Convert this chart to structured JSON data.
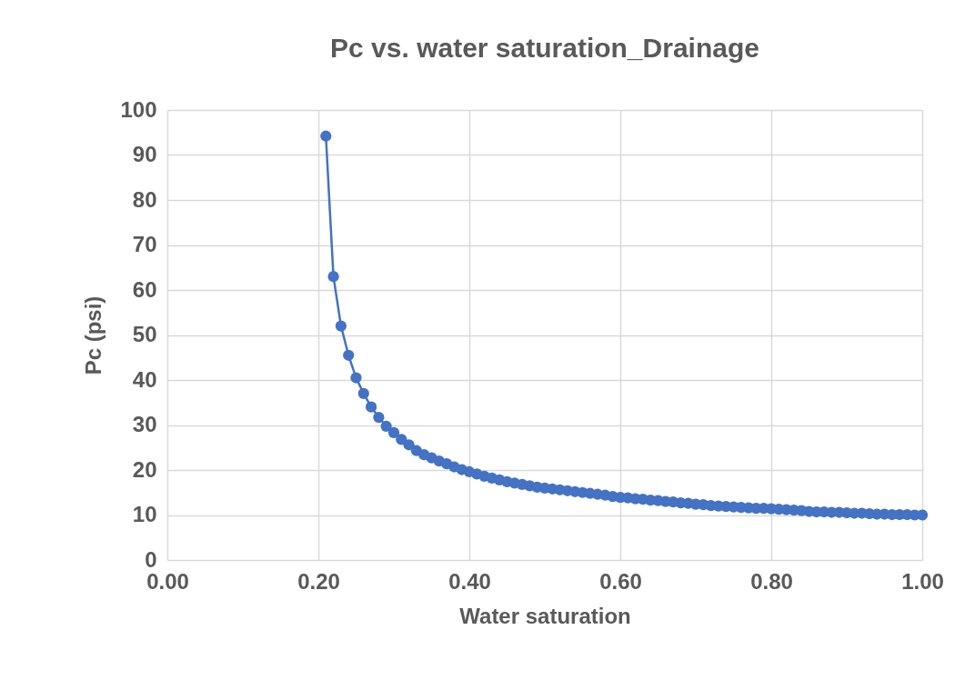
{
  "chart_data": {
    "type": "line",
    "title": "Pc vs. water saturation_Drainage",
    "xlabel": "Water saturation",
    "ylabel": "Pc (psi)",
    "x": [
      0.21,
      0.22,
      0.23,
      0.24,
      0.25,
      0.26,
      0.27,
      0.28,
      0.29,
      0.3,
      0.31,
      0.32,
      0.33,
      0.34,
      0.35,
      0.36,
      0.37,
      0.38,
      0.39,
      0.4,
      0.41,
      0.42,
      0.43,
      0.44,
      0.45,
      0.46,
      0.47,
      0.48,
      0.49,
      0.5,
      0.51,
      0.52,
      0.53,
      0.54,
      0.55,
      0.56,
      0.57,
      0.58,
      0.59,
      0.6,
      0.61,
      0.62,
      0.63,
      0.64,
      0.65,
      0.66,
      0.67,
      0.68,
      0.69,
      0.7,
      0.71,
      0.72,
      0.73,
      0.74,
      0.75,
      0.76,
      0.77,
      0.78,
      0.79,
      0.8,
      0.81,
      0.82,
      0.83,
      0.84,
      0.85,
      0.86,
      0.87,
      0.88,
      0.89,
      0.9,
      0.91,
      0.92,
      0.93,
      0.94,
      0.95,
      0.96,
      0.97,
      0.98,
      0.99,
      1.0
    ],
    "series": [
      {
        "color": "#4472c4",
        "values": [
          94.2,
          63,
          52,
          45.5,
          40.5,
          37.0,
          34.0,
          31.7,
          29.7,
          28.3,
          26.8,
          25.6,
          24.3,
          23.4,
          22.7,
          22.0,
          21.4,
          20.7,
          20.1,
          19.6,
          19.1,
          18.6,
          18.2,
          17.8,
          17.4,
          17.1,
          16.8,
          16.5,
          16.2,
          16.0,
          15.8,
          15.6,
          15.4,
          15.2,
          15.0,
          14.8,
          14.6,
          14.4,
          14.1,
          13.9,
          13.8,
          13.6,
          13.5,
          13.3,
          13.2,
          13.0,
          12.9,
          12.7,
          12.6,
          12.4,
          12.3,
          12.1,
          12.0,
          11.9,
          11.8,
          11.7,
          11.6,
          11.5,
          11.5,
          11.4,
          11.3,
          11.2,
          11.1,
          11.0,
          10.8,
          10.7,
          10.7,
          10.6,
          10.6,
          10.5,
          10.4,
          10.4,
          10.3,
          10.2,
          10.2,
          10.1,
          10.1,
          10.1,
          10.0,
          10.0
        ]
      }
    ],
    "xlim": [
      0,
      1
    ],
    "xticks": [
      {
        "value": 0,
        "label": "0.00"
      },
      {
        "value": 0.2,
        "label": "0.20"
      },
      {
        "value": 0.4,
        "label": "0.40"
      },
      {
        "value": 0.6,
        "label": "0.60"
      },
      {
        "value": 0.8,
        "label": "0.80"
      },
      {
        "value": 1,
        "label": "1.00"
      }
    ],
    "ylim": [
      0,
      100
    ],
    "yticks": [
      0,
      10,
      20,
      30,
      40,
      50,
      60,
      70,
      80,
      90,
      100
    ],
    "grid": true,
    "marker": "circle",
    "line_style": "solid"
  }
}
